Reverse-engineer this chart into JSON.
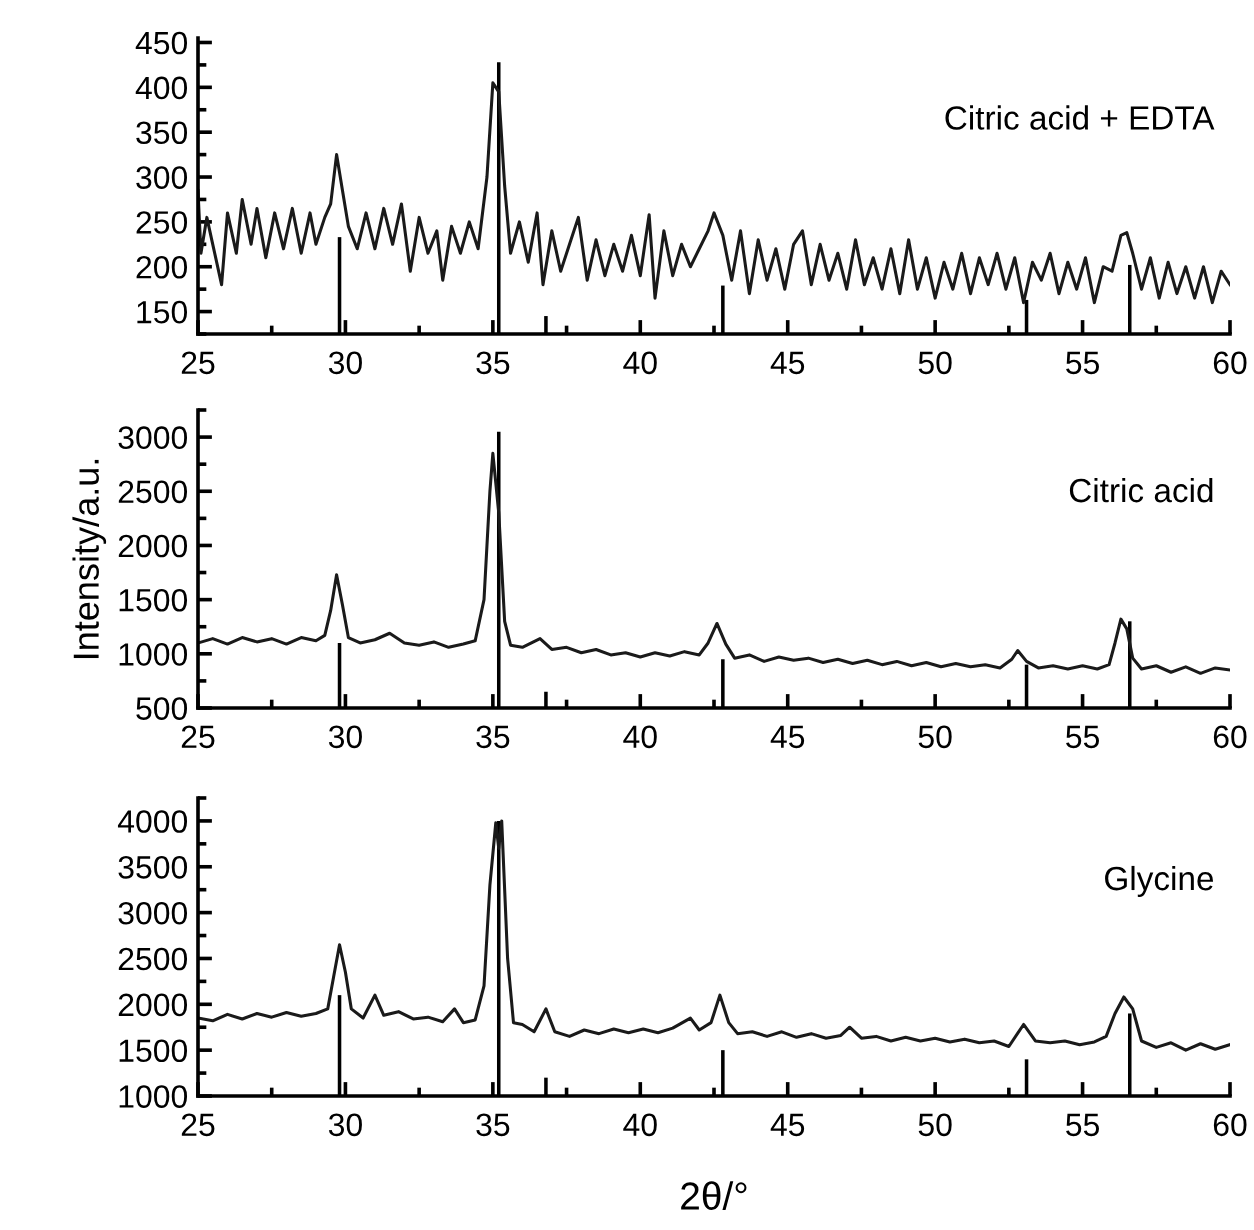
{
  "chart_data": [
    {
      "type": "line",
      "xlim": [
        25,
        60
      ],
      "xticks": [
        25,
        30,
        35,
        40,
        45,
        50,
        55,
        60
      ],
      "ylim": [
        125,
        455
      ],
      "yticks": [
        150,
        200,
        250,
        300,
        350,
        400,
        450
      ],
      "grid": false,
      "legend": false,
      "series": [
        {
          "name": "Citric acid + EDTA",
          "color": "#1a1a1a",
          "x": [
            25.0,
            25.1,
            25.3,
            25.5,
            25.8,
            26.0,
            26.3,
            26.5,
            26.8,
            27.0,
            27.3,
            27.6,
            27.9,
            28.2,
            28.5,
            28.8,
            29.0,
            29.3,
            29.5,
            29.7,
            29.9,
            30.1,
            30.4,
            30.7,
            31.0,
            31.3,
            31.6,
            31.9,
            32.2,
            32.5,
            32.8,
            33.1,
            33.3,
            33.6,
            33.9,
            34.2,
            34.5,
            34.8,
            35.0,
            35.2,
            35.4,
            35.6,
            35.9,
            36.2,
            36.5,
            36.7,
            37.0,
            37.3,
            37.6,
            37.9,
            38.2,
            38.5,
            38.8,
            39.1,
            39.4,
            39.7,
            40.0,
            40.3,
            40.5,
            40.8,
            41.1,
            41.4,
            41.7,
            42.0,
            42.3,
            42.5,
            42.8,
            43.1,
            43.4,
            43.7,
            44.0,
            44.3,
            44.6,
            44.9,
            45.2,
            45.5,
            45.8,
            46.1,
            46.4,
            46.7,
            47.0,
            47.3,
            47.6,
            47.9,
            48.2,
            48.5,
            48.8,
            49.1,
            49.4,
            49.7,
            50.0,
            50.3,
            50.6,
            50.9,
            51.2,
            51.5,
            51.8,
            52.1,
            52.4,
            52.7,
            53.0,
            53.3,
            53.6,
            53.9,
            54.2,
            54.5,
            54.8,
            55.1,
            55.4,
            55.7,
            56.0,
            56.3,
            56.5,
            56.7,
            57.0,
            57.3,
            57.6,
            57.9,
            58.2,
            58.5,
            58.8,
            59.1,
            59.4,
            59.7,
            60.0
          ],
          "values": [
            285,
            215,
            255,
            225,
            180,
            260,
            215,
            275,
            225,
            265,
            210,
            260,
            220,
            265,
            215,
            260,
            225,
            255,
            270,
            325,
            285,
            245,
            220,
            260,
            220,
            265,
            225,
            270,
            195,
            255,
            215,
            240,
            185,
            245,
            215,
            250,
            220,
            300,
            405,
            395,
            290,
            215,
            250,
            205,
            260,
            180,
            240,
            195,
            225,
            255,
            185,
            230,
            190,
            225,
            195,
            235,
            190,
            258,
            165,
            240,
            190,
            225,
            200,
            220,
            240,
            260,
            235,
            185,
            240,
            170,
            230,
            185,
            220,
            175,
            225,
            240,
            180,
            225,
            185,
            215,
            175,
            230,
            180,
            210,
            175,
            220,
            170,
            230,
            175,
            210,
            165,
            205,
            175,
            215,
            170,
            210,
            180,
            215,
            175,
            210,
            160,
            205,
            185,
            215,
            170,
            205,
            175,
            210,
            160,
            200,
            195,
            235,
            238,
            215,
            175,
            210,
            165,
            205,
            170,
            200,
            165,
            200,
            160,
            195,
            180
          ]
        },
        {
          "type": "bar",
          "color": "#000000",
          "x": [
            29.8,
            35.2,
            36.8,
            42.8,
            53.1,
            56.6
          ],
          "base": [
            125,
            125,
            125,
            125,
            125,
            125
          ],
          "values": [
            108,
            303,
            20,
            54,
            38,
            77
          ]
        }
      ]
    },
    {
      "type": "line",
      "xlim": [
        25,
        60
      ],
      "xticks": [
        25,
        30,
        35,
        40,
        45,
        50,
        55,
        60
      ],
      "ylim": [
        500,
        3250
      ],
      "yticks": [
        500,
        1000,
        1500,
        2000,
        2500,
        3000
      ],
      "ylabel": "Intensity/a.u.",
      "grid": false,
      "legend": false,
      "series": [
        {
          "name": "Citric acid",
          "color": "#1a1a1a",
          "x": [
            25.0,
            25.5,
            26.0,
            26.5,
            27.0,
            27.5,
            28.0,
            28.5,
            29.0,
            29.3,
            29.5,
            29.7,
            29.9,
            30.1,
            30.5,
            31.0,
            31.5,
            32.0,
            32.5,
            33.0,
            33.5,
            34.0,
            34.4,
            34.7,
            34.9,
            35.0,
            35.2,
            35.4,
            35.6,
            36.0,
            36.6,
            37.0,
            37.5,
            38.0,
            38.5,
            39.0,
            39.5,
            40.0,
            40.5,
            41.0,
            41.5,
            42.0,
            42.3,
            42.6,
            42.9,
            43.2,
            43.7,
            44.2,
            44.7,
            45.2,
            45.7,
            46.2,
            46.7,
            47.2,
            47.7,
            48.2,
            48.7,
            49.2,
            49.7,
            50.2,
            50.7,
            51.2,
            51.7,
            52.2,
            52.6,
            52.8,
            53.1,
            53.5,
            54.0,
            54.5,
            55.0,
            55.5,
            55.9,
            56.1,
            56.3,
            56.5,
            56.7,
            57.0,
            57.5,
            58.0,
            58.5,
            59.0,
            59.5,
            60.0
          ],
          "values": [
            1100,
            1140,
            1090,
            1150,
            1110,
            1140,
            1090,
            1150,
            1120,
            1170,
            1400,
            1730,
            1450,
            1150,
            1100,
            1130,
            1190,
            1100,
            1080,
            1110,
            1060,
            1090,
            1120,
            1500,
            2500,
            2850,
            2300,
            1300,
            1080,
            1060,
            1140,
            1040,
            1060,
            1010,
            1040,
            990,
            1010,
            970,
            1010,
            980,
            1020,
            990,
            1100,
            1280,
            1090,
            960,
            990,
            930,
            970,
            940,
            960,
            920,
            950,
            910,
            940,
            900,
            930,
            890,
            920,
            880,
            910,
            880,
            900,
            870,
            950,
            1030,
            930,
            870,
            890,
            860,
            890,
            860,
            900,
            1100,
            1320,
            1230,
            960,
            860,
            890,
            830,
            880,
            820,
            870,
            850
          ]
        },
        {
          "type": "bar",
          "color": "#000000",
          "x": [
            29.8,
            35.2,
            36.8,
            42.8,
            53.1,
            56.6
          ],
          "base": [
            500,
            500,
            500,
            500,
            500,
            500
          ],
          "values": [
            600,
            2550,
            150,
            450,
            400,
            800
          ]
        }
      ]
    },
    {
      "type": "line",
      "xlim": [
        25,
        60
      ],
      "xticks": [
        25,
        30,
        35,
        40,
        45,
        50,
        55,
        60
      ],
      "ylim": [
        1000,
        4250
      ],
      "yticks": [
        1000,
        1500,
        2000,
        2500,
        3000,
        3500,
        4000
      ],
      "xlabel": "2θ/°",
      "grid": false,
      "legend": false,
      "series": [
        {
          "name": "Glycine",
          "color": "#1a1a1a",
          "x": [
            25.0,
            25.5,
            26.0,
            26.5,
            27.0,
            27.5,
            28.0,
            28.5,
            29.0,
            29.4,
            29.6,
            29.8,
            30.0,
            30.2,
            30.6,
            31.0,
            31.3,
            31.8,
            32.3,
            32.8,
            33.3,
            33.7,
            34.0,
            34.4,
            34.7,
            34.9,
            35.1,
            35.2,
            35.3,
            35.5,
            35.7,
            36.0,
            36.4,
            36.8,
            37.1,
            37.6,
            38.1,
            38.6,
            39.1,
            39.6,
            40.1,
            40.6,
            41.1,
            41.7,
            42.0,
            42.4,
            42.7,
            43.0,
            43.3,
            43.8,
            44.3,
            44.8,
            45.3,
            45.8,
            46.3,
            46.8,
            47.1,
            47.5,
            48.0,
            48.5,
            49.0,
            49.5,
            50.0,
            50.5,
            51.0,
            51.5,
            52.0,
            52.5,
            53.0,
            53.4,
            53.9,
            54.4,
            54.9,
            55.4,
            55.8,
            56.1,
            56.4,
            56.7,
            57.0,
            57.5,
            58.0,
            58.5,
            59.0,
            59.5,
            60.0
          ],
          "values": [
            1850,
            1820,
            1890,
            1840,
            1900,
            1860,
            1910,
            1870,
            1900,
            1950,
            2300,
            2650,
            2350,
            1950,
            1850,
            2100,
            1880,
            1920,
            1840,
            1860,
            1810,
            1950,
            1800,
            1830,
            2200,
            3300,
            3980,
            3700,
            4000,
            2500,
            1800,
            1780,
            1700,
            1950,
            1700,
            1650,
            1720,
            1680,
            1730,
            1690,
            1730,
            1690,
            1740,
            1850,
            1720,
            1800,
            2100,
            1800,
            1680,
            1700,
            1650,
            1700,
            1640,
            1680,
            1630,
            1660,
            1750,
            1630,
            1650,
            1600,
            1640,
            1600,
            1630,
            1590,
            1620,
            1580,
            1600,
            1540,
            1780,
            1600,
            1580,
            1600,
            1560,
            1590,
            1650,
            1900,
            2080,
            1950,
            1600,
            1530,
            1580,
            1500,
            1570,
            1510,
            1560
          ]
        },
        {
          "type": "bar",
          "color": "#000000",
          "x": [
            29.8,
            35.2,
            36.8,
            42.8,
            53.1,
            56.6
          ],
          "base": [
            1000,
            1000,
            1000,
            1000,
            1000,
            1000
          ],
          "values": [
            1100,
            3000,
            200,
            500,
            400,
            900
          ]
        }
      ]
    }
  ]
}
